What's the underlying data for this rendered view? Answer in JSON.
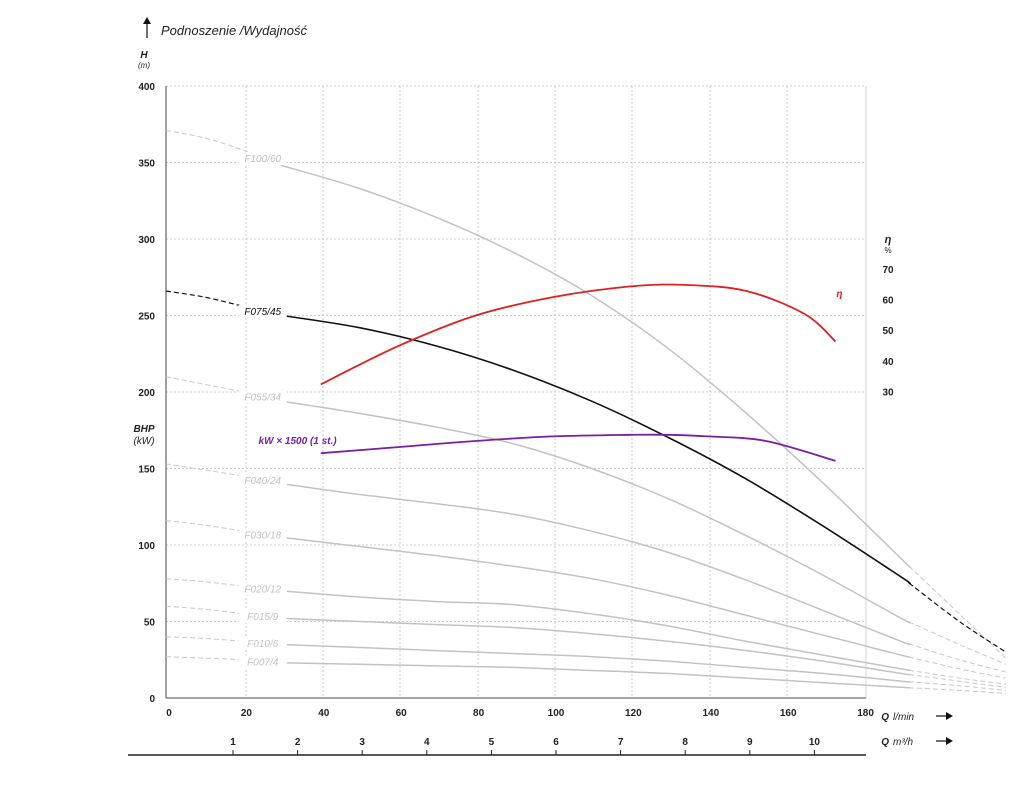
{
  "chart_data": {
    "type": "line",
    "title": "Podnoszenie /Wydajność",
    "y_label": {
      "symbol": "H",
      "unit": "(m)"
    },
    "bhp_label": {
      "symbol": "BHP",
      "unit": "(kW)"
    },
    "eta_axis": {
      "symbol": "η",
      "unit": "%",
      "ticks": [
        70,
        60,
        50,
        40,
        30
      ],
      "ylim": [
        30,
        70
      ]
    },
    "x_label": {
      "symbol": "Q",
      "unit": "l/min"
    },
    "x2_label": {
      "symbol": "Q",
      "unit": "m³/h"
    },
    "x_ticks": [
      0,
      20,
      40,
      60,
      80,
      100,
      120,
      140,
      160,
      180
    ],
    "x2_ticks": [
      1,
      2,
      3,
      4,
      5,
      6,
      7,
      8,
      9,
      10
    ],
    "y_ticks": [
      0,
      50,
      100,
      150,
      200,
      250,
      300,
      350,
      400
    ],
    "xlim": [
      0,
      217
    ],
    "ylim": [
      0,
      400
    ],
    "grid": true,
    "series": [
      {
        "name": "F100/60",
        "color": "#c2c2c2",
        "label_x": 25,
        "x": [
          0,
          10,
          20,
          30,
          50,
          70,
          90,
          110,
          130,
          150,
          170,
          190,
          205,
          217
        ],
        "y": [
          371,
          366,
          358,
          348,
          333,
          314,
          291,
          263,
          228,
          186,
          140,
          91,
          55,
          26
        ]
      },
      {
        "name": "F075/45",
        "color": "#111111",
        "label_x": 25,
        "highlight": true,
        "x": [
          0,
          10,
          20,
          30,
          50,
          70,
          90,
          110,
          130,
          150,
          170,
          190,
          205,
          217
        ],
        "y": [
          266,
          262,
          256,
          250,
          242,
          230,
          214,
          194,
          170,
          143,
          112,
          79,
          50,
          30
        ]
      },
      {
        "name": "F055/34",
        "color": "#c2c2c2",
        "label_x": 25,
        "x": [
          0,
          10,
          20,
          30,
          50,
          70,
          90,
          110,
          130,
          150,
          170,
          190,
          205,
          217
        ],
        "y": [
          210,
          205,
          200,
          194,
          186,
          177,
          166,
          150,
          130,
          106,
          80,
          52,
          35,
          22
        ]
      },
      {
        "name": "F040/24",
        "color": "#c2c2c2",
        "label_x": 25,
        "x": [
          0,
          10,
          20,
          30,
          50,
          70,
          90,
          110,
          130,
          150,
          170,
          190,
          205,
          217
        ],
        "y": [
          153,
          149,
          145,
          140,
          133,
          127,
          120,
          109,
          95,
          77,
          57,
          37,
          25,
          17
        ]
      },
      {
        "name": "F030/18",
        "color": "#c2c2c2",
        "label_x": 25,
        "x": [
          0,
          10,
          20,
          30,
          50,
          70,
          90,
          110,
          130,
          150,
          170,
          190,
          205,
          217
        ],
        "y": [
          116,
          113,
          109,
          105,
          99,
          93,
          86,
          78,
          67,
          54,
          41,
          28,
          19,
          13
        ]
      },
      {
        "name": "F020/12",
        "color": "#c2c2c2",
        "label_x": 25,
        "x": [
          0,
          10,
          20,
          30,
          50,
          70,
          90,
          110,
          130,
          150,
          170,
          190,
          205,
          217
        ],
        "y": [
          78,
          76,
          73,
          70,
          66,
          63,
          61,
          55,
          47,
          37,
          28,
          19,
          13,
          9
        ]
      },
      {
        "name": "F015/9",
        "color": "#c2c2c2",
        "label_x": 25,
        "x": [
          0,
          10,
          20,
          30,
          50,
          70,
          90,
          110,
          130,
          150,
          170,
          190,
          205,
          217
        ],
        "y": [
          60,
          58,
          55,
          52,
          50,
          48,
          46,
          42,
          37,
          31,
          24,
          16,
          11,
          7
        ]
      },
      {
        "name": "F010/6",
        "color": "#c2c2c2",
        "label_x": 25,
        "x": [
          0,
          10,
          20,
          30,
          50,
          70,
          90,
          110,
          130,
          150,
          170,
          190,
          205,
          217
        ],
        "y": [
          40,
          39,
          37,
          35,
          33,
          31,
          29,
          27,
          24,
          20,
          16,
          11,
          8,
          5
        ]
      },
      {
        "name": "F007/4",
        "color": "#c2c2c2",
        "label_x": 25,
        "x": [
          0,
          10,
          20,
          30,
          50,
          70,
          90,
          110,
          130,
          150,
          170,
          190,
          205,
          217
        ],
        "y": [
          27,
          26,
          25,
          23,
          22,
          21,
          20,
          18,
          16,
          13,
          10,
          7,
          5,
          3
        ]
      }
    ],
    "overlay_series": [
      {
        "name": "η",
        "color": "#e02020",
        "label_x": 174,
        "label_y": 262,
        "x": [
          40,
          60,
          80,
          100,
          120,
          134,
          150,
          165,
          173
        ],
        "y": [
          205,
          230,
          250,
          262,
          269,
          270,
          266,
          251,
          233
        ]
      },
      {
        "name": "kW × 1500 (1 st.)",
        "color": "#7a1fa2",
        "label_x": 34,
        "label_y": 166,
        "x": [
          40,
          60,
          80,
          100,
          120,
          130,
          140,
          155,
          173
        ],
        "y": [
          160,
          164,
          168,
          171,
          172,
          172,
          171,
          168,
          155
        ]
      }
    ],
    "pump_range": [
      30,
      192
    ]
  }
}
